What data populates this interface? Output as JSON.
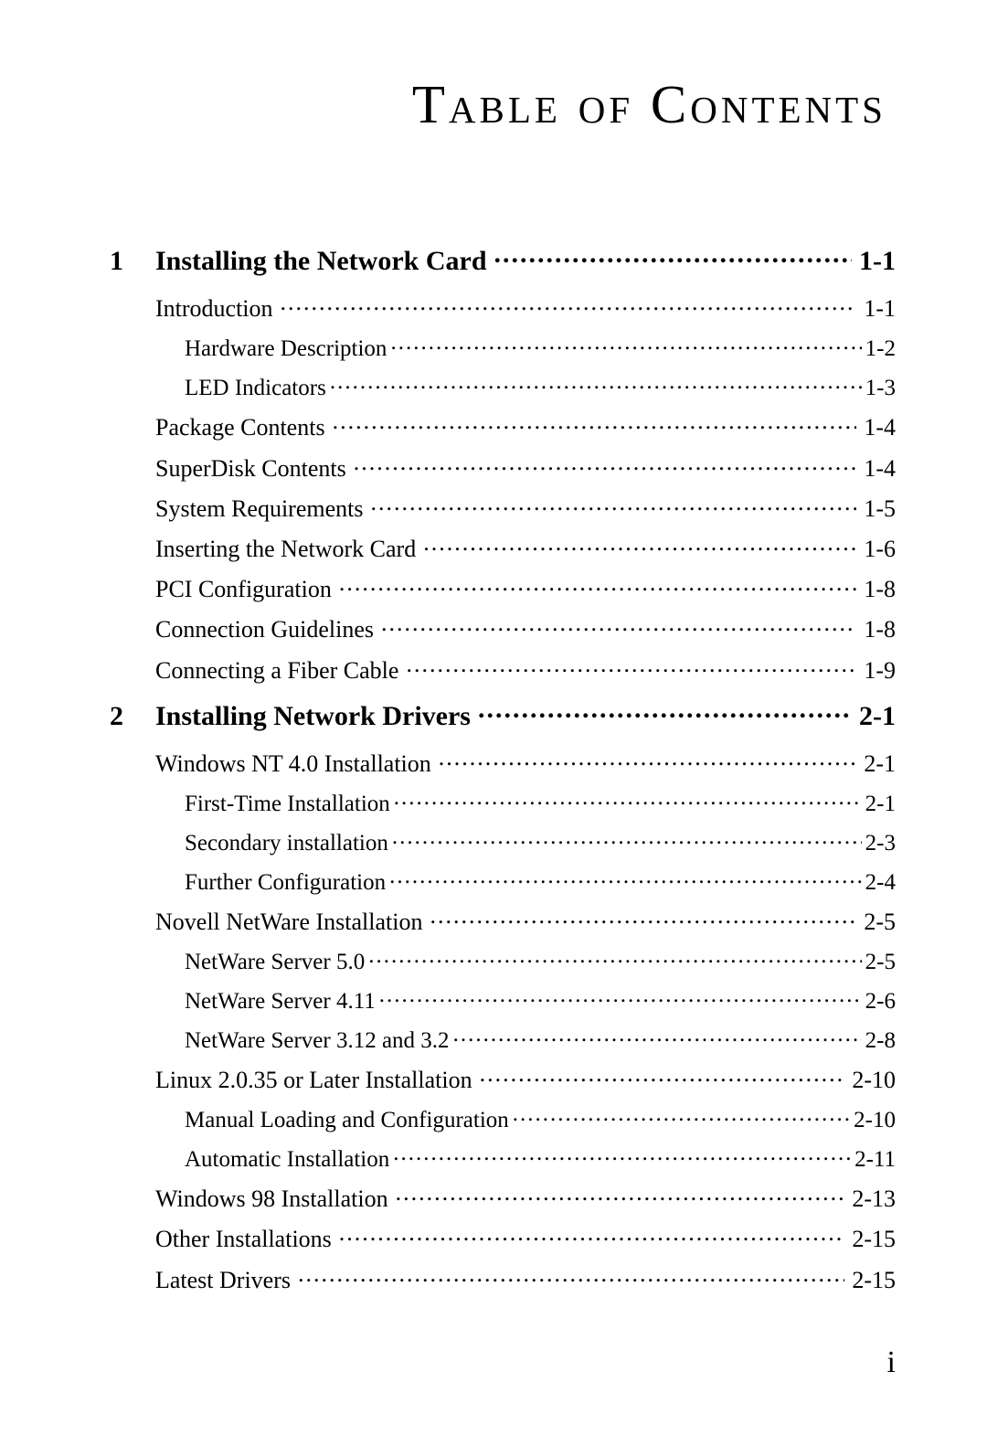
{
  "title": "Table of Contents",
  "page_number": "i",
  "colors": {
    "text": "#000000",
    "background": "#ffffff"
  },
  "typography": {
    "title_fontsize": 59,
    "chapter_fontsize": 30,
    "entry_fontsize": 26,
    "subentry_fontsize": 25,
    "page_number_fontsize": 34,
    "font_family": "Garamond / Times serif"
  },
  "entries": [
    {
      "type": "chapter",
      "number": "1",
      "label": "Installing the Network Card",
      "page": "1-1"
    },
    {
      "type": "item",
      "indent": 1,
      "label": "Introduction",
      "page": "1-1"
    },
    {
      "type": "item",
      "indent": 2,
      "label": "Hardware Description",
      "page": "1-2"
    },
    {
      "type": "item",
      "indent": 2,
      "label": "LED Indicators",
      "page": "1-3"
    },
    {
      "type": "item",
      "indent": 1,
      "label": "Package Contents",
      "page": "1-4"
    },
    {
      "type": "item",
      "indent": 1,
      "label": "SuperDisk Contents",
      "page": "1-4"
    },
    {
      "type": "item",
      "indent": 1,
      "label": "System Requirements",
      "page": "1-5"
    },
    {
      "type": "item",
      "indent": 1,
      "label": "Inserting the Network Card",
      "page": "1-6"
    },
    {
      "type": "item",
      "indent": 1,
      "label": "PCI Configuration",
      "page": "1-8"
    },
    {
      "type": "item",
      "indent": 1,
      "label": "Connection Guidelines",
      "page": "1-8"
    },
    {
      "type": "item",
      "indent": 1,
      "label": "Connecting a Fiber Cable",
      "page": "1-9"
    },
    {
      "type": "chapter",
      "number": "2",
      "label": "Installing Network Drivers",
      "page": "2-1"
    },
    {
      "type": "item",
      "indent": 1,
      "label": "Windows NT 4.0 Installation",
      "page": "2-1"
    },
    {
      "type": "item",
      "indent": 2,
      "label": "First-Time Installation",
      "page": "2-1"
    },
    {
      "type": "item",
      "indent": 2,
      "label": "Secondary installation",
      "page": "2-3"
    },
    {
      "type": "item",
      "indent": 2,
      "label": "Further Configuration",
      "page": "2-4"
    },
    {
      "type": "item",
      "indent": 1,
      "label": "Novell NetWare Installation",
      "page": "2-5"
    },
    {
      "type": "item",
      "indent": 2,
      "label": "NetWare Server 5.0",
      "page": "2-5"
    },
    {
      "type": "item",
      "indent": 2,
      "label": "NetWare Server 4.11",
      "page": "2-6"
    },
    {
      "type": "item",
      "indent": 2,
      "label": "NetWare Server 3.12 and 3.2",
      "page": "2-8"
    },
    {
      "type": "item",
      "indent": 1,
      "label": "Linux 2.0.35 or Later Installation",
      "page": "2-10"
    },
    {
      "type": "item",
      "indent": 2,
      "label": "Manual Loading and Configuration",
      "page": "2-10"
    },
    {
      "type": "item",
      "indent": 2,
      "label": "Automatic Installation",
      "page": "2-11"
    },
    {
      "type": "item",
      "indent": 1,
      "label": "Windows 98 Installation",
      "page": "2-13"
    },
    {
      "type": "item",
      "indent": 1,
      "label": "Other Installations",
      "page": "2-15"
    },
    {
      "type": "item",
      "indent": 1,
      "label": "Latest Drivers",
      "page": "2-15"
    }
  ]
}
